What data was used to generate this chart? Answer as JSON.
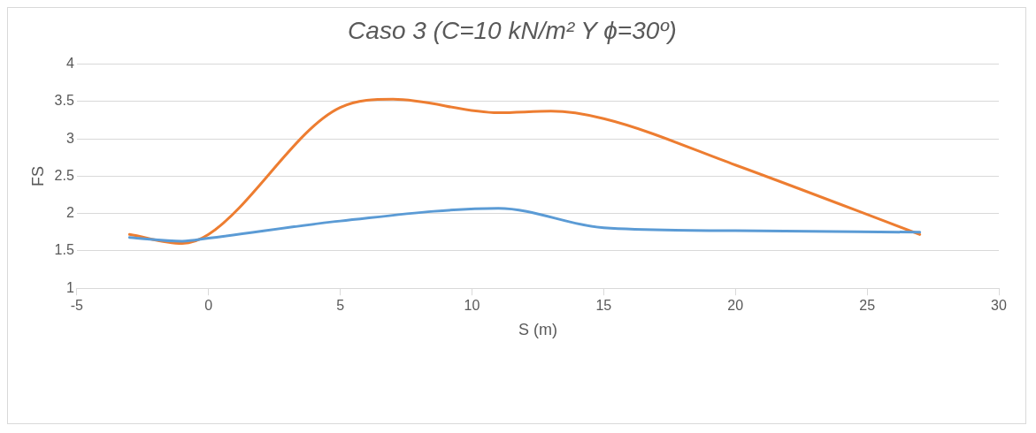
{
  "chart_data": {
    "type": "line",
    "title": "Caso 3 (C=10 kN/m² Y ϕ=30º)",
    "xlabel": "S (m)",
    "ylabel": "FS",
    "xlim": [
      -5,
      30
    ],
    "xticks": [
      -5,
      0,
      5,
      10,
      15,
      20,
      25,
      30
    ],
    "ylim": [
      1,
      4
    ],
    "yticks": [
      1,
      1.5,
      2,
      2.5,
      3,
      3.5,
      4
    ],
    "grid": "y",
    "legend": false,
    "marker": "none",
    "series": [
      {
        "color": "#5b9bd5",
        "x": [
          -3,
          -1,
          0,
          5,
          11,
          15,
          20,
          27
        ],
        "values": [
          1.68,
          1.63,
          1.67,
          1.9,
          2.07,
          1.81,
          1.77,
          1.75
        ]
      },
      {
        "color": "#ed7d31",
        "x": [
          -3,
          -1,
          0,
          5,
          7,
          11,
          13,
          15,
          20,
          27
        ],
        "values": [
          1.72,
          1.6,
          1.72,
          3.42,
          3.53,
          3.35,
          3.37,
          3.27,
          2.65,
          1.72
        ]
      }
    ]
  }
}
